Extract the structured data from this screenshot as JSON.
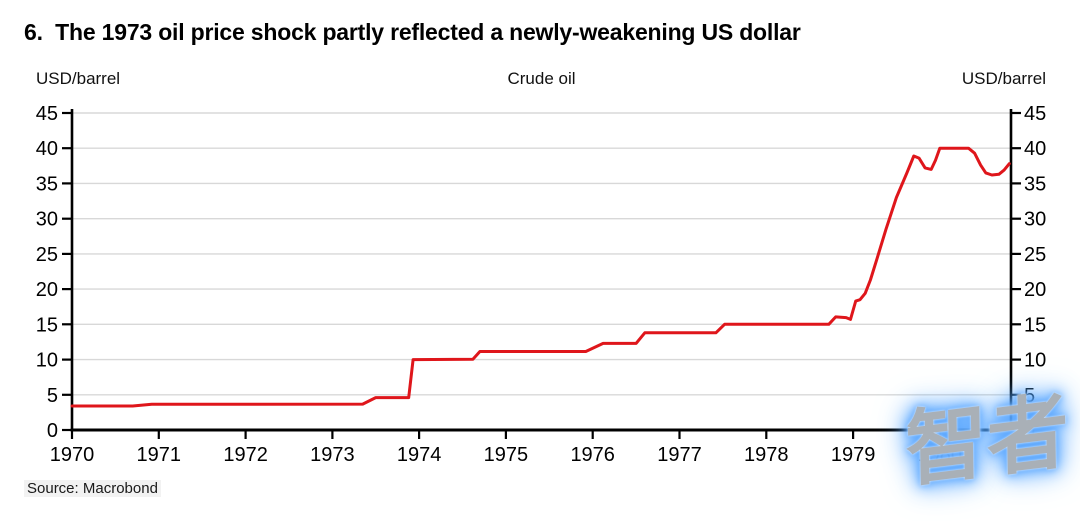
{
  "page": {
    "title": "6.  The 1973 oil price shock partly reflected a newly-weakening US dollar",
    "source": "Source: Macrobond",
    "watermark": "智者"
  },
  "colors": {
    "line_red": "#df161b",
    "grid": "#d8d8d8",
    "axis": "#000000",
    "watermark_fill": "#a9b0b7",
    "watermark_glow": "#4da0ff"
  },
  "chart_data": {
    "type": "line",
    "title": "Crude oil",
    "left_axis_unit": "USD/barrel",
    "right_axis_unit": "USD/barrel",
    "xlabel": "",
    "ylabel": "USD/barrel",
    "ylim": [
      0,
      45
    ],
    "y_ticks": [
      0,
      5,
      10,
      15,
      20,
      25,
      30,
      35,
      40,
      45
    ],
    "xlim": [
      1970,
      1980.82
    ],
    "x_ticks": [
      1970,
      1971,
      1972,
      1973,
      1974,
      1975,
      1976,
      1977,
      1978,
      1979,
      1980
    ],
    "grid": "horizontal",
    "legend": "none",
    "series": [
      {
        "name": "Crude oil",
        "unit": "USD/barrel",
        "color": "#df161b",
        "points": [
          [
            1970.0,
            3.4
          ],
          [
            1970.7,
            3.4
          ],
          [
            1970.92,
            3.65
          ],
          [
            1973.35,
            3.68
          ],
          [
            1973.5,
            4.6
          ],
          [
            1973.88,
            4.6
          ],
          [
            1973.93,
            10.0
          ],
          [
            1974.62,
            10.05
          ],
          [
            1974.7,
            11.15
          ],
          [
            1975.92,
            11.15
          ],
          [
            1976.12,
            12.3
          ],
          [
            1976.5,
            12.3
          ],
          [
            1976.6,
            13.8
          ],
          [
            1977.42,
            13.8
          ],
          [
            1977.52,
            15.0
          ],
          [
            1978.72,
            15.0
          ],
          [
            1978.8,
            16.05
          ],
          [
            1978.92,
            15.95
          ],
          [
            1978.97,
            15.7
          ],
          [
            1979.03,
            18.3
          ],
          [
            1979.08,
            18.5
          ],
          [
            1979.14,
            19.4
          ],
          [
            1979.2,
            21.3
          ],
          [
            1979.28,
            24.5
          ],
          [
            1979.38,
            28.5
          ],
          [
            1979.5,
            33.0
          ],
          [
            1979.62,
            36.5
          ],
          [
            1979.7,
            38.9
          ],
          [
            1979.76,
            38.6
          ],
          [
            1979.83,
            37.2
          ],
          [
            1979.9,
            37.0
          ],
          [
            1979.95,
            38.3
          ],
          [
            1980.0,
            40.0
          ],
          [
            1980.33,
            40.0
          ],
          [
            1980.4,
            39.3
          ],
          [
            1980.47,
            37.6
          ],
          [
            1980.53,
            36.5
          ],
          [
            1980.6,
            36.2
          ],
          [
            1980.68,
            36.3
          ],
          [
            1980.74,
            36.9
          ],
          [
            1980.8,
            37.8
          ]
        ]
      }
    ]
  }
}
